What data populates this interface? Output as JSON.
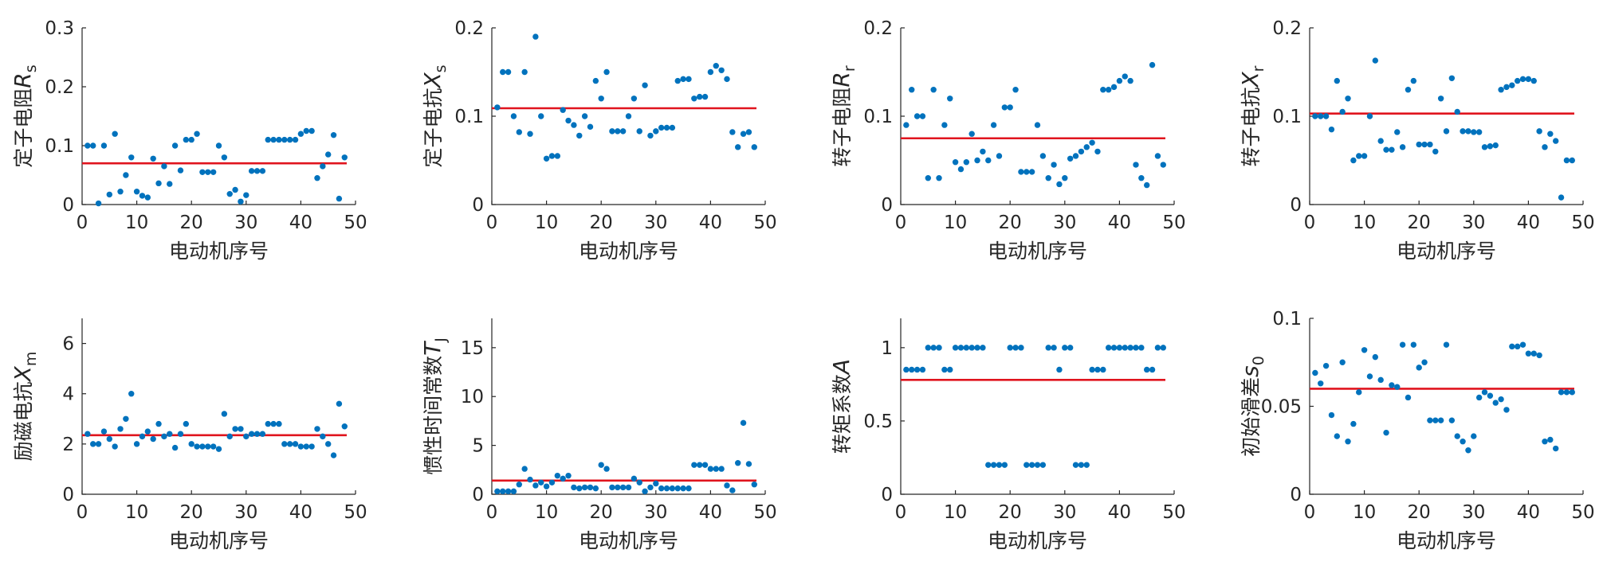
{
  "colors": {
    "points": "#0072BD",
    "mean_line": "#E0141E",
    "axes": "#262626"
  },
  "chart_data": [
    {
      "type": "scatter",
      "ylabel": "定子电阻",
      "ylabel_symbol": "R",
      "ylabel_sub": "s",
      "xlabel": "电动机序号",
      "xlim": [
        0,
        50
      ],
      "xticks": [
        0,
        10,
        20,
        30,
        40,
        50
      ],
      "ylim": [
        0,
        0.3
      ],
      "yticks": [
        "0",
        "0.1",
        "0.2",
        "0.3"
      ],
      "mean": 0.07,
      "x": [
        1,
        2,
        3,
        4,
        5,
        6,
        7,
        8,
        9,
        10,
        11,
        12,
        13,
        14,
        15,
        16,
        17,
        18,
        19,
        20,
        21,
        22,
        23,
        24,
        25,
        26,
        27,
        28,
        29,
        30,
        31,
        32,
        33,
        34,
        35,
        36,
        37,
        38,
        39,
        40,
        41,
        42,
        43,
        44,
        45,
        46,
        47,
        48
      ],
      "y": [
        0.1,
        0.1,
        0.002,
        0.1,
        0.017,
        0.12,
        0.022,
        0.05,
        0.08,
        0.022,
        0.015,
        0.012,
        0.078,
        0.036,
        0.065,
        0.035,
        0.1,
        0.058,
        0.11,
        0.11,
        0.12,
        0.055,
        0.055,
        0.055,
        0.1,
        0.08,
        0.018,
        0.025,
        0.005,
        0.016,
        0.057,
        0.057,
        0.057,
        0.11,
        0.11,
        0.11,
        0.11,
        0.11,
        0.11,
        0.12,
        0.125,
        0.125,
        0.045,
        0.065,
        0.085,
        0.118,
        0.01,
        0.08
      ]
    },
    {
      "type": "scatter",
      "ylabel": "定子电抗",
      "ylabel_symbol": "X",
      "ylabel_sub": "s",
      "xlabel": "电动机序号",
      "xlim": [
        0,
        50
      ],
      "xticks": [
        0,
        10,
        20,
        30,
        40,
        50
      ],
      "ylim": [
        0,
        0.2
      ],
      "yticks": [
        "0",
        "0.1",
        "0.2"
      ],
      "mean": 0.109,
      "x": [
        1,
        2,
        3,
        4,
        5,
        6,
        7,
        8,
        9,
        10,
        11,
        12,
        13,
        14,
        15,
        16,
        17,
        18,
        19,
        20,
        21,
        22,
        23,
        24,
        25,
        26,
        27,
        28,
        29,
        30,
        31,
        32,
        33,
        34,
        35,
        36,
        37,
        38,
        39,
        40,
        41,
        42,
        43,
        44,
        45,
        46,
        47,
        48
      ],
      "y": [
        0.11,
        0.15,
        0.15,
        0.1,
        0.082,
        0.15,
        0.08,
        0.19,
        0.1,
        0.052,
        0.055,
        0.055,
        0.107,
        0.095,
        0.09,
        0.078,
        0.1,
        0.088,
        0.14,
        0.12,
        0.15,
        0.083,
        0.083,
        0.083,
        0.1,
        0.12,
        0.083,
        0.135,
        0.078,
        0.083,
        0.087,
        0.087,
        0.087,
        0.14,
        0.142,
        0.142,
        0.12,
        0.122,
        0.122,
        0.15,
        0.157,
        0.152,
        0.142,
        0.082,
        0.065,
        0.08,
        0.082,
        0.065
      ]
    },
    {
      "type": "scatter",
      "ylabel": "转子电阻",
      "ylabel_symbol": "R",
      "ylabel_sub": "r",
      "xlabel": "电动机序号",
      "xlim": [
        0,
        50
      ],
      "xticks": [
        0,
        10,
        20,
        30,
        40,
        50
      ],
      "ylim": [
        0,
        0.2
      ],
      "yticks": [
        "0",
        "0.1",
        "0.2"
      ],
      "mean": 0.075,
      "x": [
        1,
        2,
        3,
        4,
        5,
        6,
        7,
        8,
        9,
        10,
        11,
        12,
        13,
        14,
        15,
        16,
        17,
        18,
        19,
        20,
        21,
        22,
        23,
        24,
        25,
        26,
        27,
        28,
        29,
        30,
        31,
        32,
        33,
        34,
        35,
        36,
        37,
        38,
        39,
        40,
        41,
        42,
        43,
        44,
        45,
        46,
        47,
        48
      ],
      "y": [
        0.09,
        0.13,
        0.1,
        0.1,
        0.03,
        0.13,
        0.03,
        0.09,
        0.12,
        0.048,
        0.04,
        0.048,
        0.08,
        0.05,
        0.06,
        0.05,
        0.09,
        0.055,
        0.11,
        0.11,
        0.13,
        0.037,
        0.037,
        0.037,
        0.09,
        0.055,
        0.03,
        0.045,
        0.023,
        0.03,
        0.052,
        0.055,
        0.06,
        0.065,
        0.07,
        0.06,
        0.13,
        0.13,
        0.133,
        0.14,
        0.145,
        0.14,
        0.045,
        0.03,
        0.022,
        0.158,
        0.055,
        0.045
      ]
    },
    {
      "type": "scatter",
      "ylabel": "转子电抗",
      "ylabel_symbol": "X",
      "ylabel_sub": "r",
      "xlabel": "电动机序号",
      "xlim": [
        0,
        50
      ],
      "xticks": [
        0,
        10,
        20,
        30,
        40,
        50
      ],
      "ylim": [
        0,
        0.2
      ],
      "yticks": [
        "0",
        "0.1",
        "0.2"
      ],
      "mean": 0.103,
      "x": [
        1,
        2,
        3,
        4,
        5,
        6,
        7,
        8,
        9,
        10,
        11,
        12,
        13,
        14,
        15,
        16,
        17,
        18,
        19,
        20,
        21,
        22,
        23,
        24,
        25,
        26,
        27,
        28,
        29,
        30,
        31,
        32,
        33,
        34,
        35,
        36,
        37,
        38,
        39,
        40,
        41,
        42,
        43,
        44,
        45,
        46,
        47,
        48
      ],
      "y": [
        0.1,
        0.1,
        0.1,
        0.085,
        0.14,
        0.105,
        0.12,
        0.05,
        0.055,
        0.055,
        0.1,
        0.163,
        0.072,
        0.062,
        0.062,
        0.082,
        0.065,
        0.13,
        0.14,
        0.068,
        0.068,
        0.068,
        0.06,
        0.12,
        0.083,
        0.143,
        0.105,
        0.083,
        0.083,
        0.082,
        0.082,
        0.065,
        0.066,
        0.067,
        0.13,
        0.133,
        0.135,
        0.14,
        0.142,
        0.142,
        0.14,
        0.083,
        0.065,
        0.08,
        0.072,
        0.008,
        0.05,
        0.05
      ]
    },
    {
      "type": "scatter",
      "ylabel": "励磁电抗",
      "ylabel_symbol": "X",
      "ylabel_sub": "m",
      "xlabel": "电动机序号",
      "xlim": [
        0,
        50
      ],
      "xticks": [
        0,
        10,
        20,
        30,
        40,
        50
      ],
      "ylim": [
        0,
        7
      ],
      "yticks": [
        "0",
        "2",
        "4",
        "6"
      ],
      "mean": 2.35,
      "x": [
        1,
        2,
        3,
        4,
        5,
        6,
        7,
        8,
        9,
        10,
        11,
        12,
        13,
        14,
        15,
        16,
        17,
        18,
        19,
        20,
        21,
        22,
        23,
        24,
        25,
        26,
        27,
        28,
        29,
        30,
        31,
        32,
        33,
        34,
        35,
        36,
        37,
        38,
        39,
        40,
        41,
        42,
        43,
        44,
        45,
        46,
        47,
        48
      ],
      "y": [
        2.4,
        2.0,
        2.0,
        2.5,
        2.2,
        1.9,
        2.6,
        3.0,
        4.0,
        2.0,
        2.3,
        2.5,
        2.2,
        2.8,
        2.3,
        2.4,
        1.85,
        2.4,
        2.8,
        2.0,
        1.9,
        1.9,
        1.9,
        1.9,
        1.8,
        3.2,
        2.3,
        2.6,
        2.6,
        2.3,
        2.4,
        2.4,
        2.4,
        2.8,
        2.8,
        2.8,
        2.0,
        2.0,
        2.0,
        1.9,
        1.9,
        1.9,
        2.6,
        2.3,
        2.0,
        1.55,
        3.6,
        2.7
      ]
    },
    {
      "type": "scatter",
      "ylabel": "惯性时间常数",
      "ylabel_symbol": "T",
      "ylabel_sub": "J",
      "xlabel": "电动机序号",
      "xlim": [
        0,
        50
      ],
      "xticks": [
        0,
        10,
        20,
        30,
        40,
        50
      ],
      "ylim": [
        0,
        18
      ],
      "yticks": [
        "0",
        "5",
        "10",
        "15"
      ],
      "mean": 1.4,
      "x": [
        1,
        2,
        3,
        4,
        5,
        6,
        7,
        8,
        9,
        10,
        11,
        12,
        13,
        14,
        15,
        16,
        17,
        18,
        19,
        20,
        21,
        22,
        23,
        24,
        25,
        26,
        27,
        28,
        29,
        30,
        31,
        32,
        33,
        34,
        35,
        36,
        37,
        38,
        39,
        40,
        41,
        42,
        43,
        44,
        45,
        46,
        47,
        48
      ],
      "y": [
        0.3,
        0.3,
        0.3,
        0.3,
        1.0,
        2.6,
        1.5,
        0.9,
        1.2,
        0.8,
        1.2,
        1.9,
        1.6,
        1.9,
        0.7,
        0.6,
        0.7,
        0.7,
        0.6,
        3.0,
        2.6,
        0.7,
        0.7,
        0.7,
        0.7,
        1.6,
        1.2,
        0.3,
        0.7,
        1.1,
        0.6,
        0.6,
        0.6,
        0.6,
        0.6,
        0.6,
        3.0,
        3.0,
        3.0,
        2.6,
        2.6,
        2.6,
        0.9,
        0.4,
        3.2,
        7.3,
        3.1,
        1.0
      ]
    },
    {
      "type": "scatter",
      "ylabel": "转矩系数",
      "ylabel_symbol": "A",
      "ylabel_sub": "",
      "xlabel": "电动机序号",
      "xlim": [
        0,
        50
      ],
      "xticks": [
        0,
        10,
        20,
        30,
        40,
        50
      ],
      "ylim": [
        0,
        1.2
      ],
      "yticks": [
        "0",
        "0.5",
        "1"
      ],
      "mean": 0.78,
      "x": [
        1,
        2,
        3,
        4,
        5,
        6,
        7,
        8,
        9,
        10,
        11,
        12,
        13,
        14,
        15,
        16,
        17,
        18,
        19,
        20,
        21,
        22,
        23,
        24,
        25,
        26,
        27,
        28,
        29,
        30,
        31,
        32,
        33,
        34,
        35,
        36,
        37,
        38,
        39,
        40,
        41,
        42,
        43,
        44,
        45,
        46,
        47,
        48
      ],
      "y": [
        0.85,
        0.85,
        0.85,
        0.85,
        1.0,
        1.0,
        1.0,
        0.85,
        0.85,
        1.0,
        1.0,
        1.0,
        1.0,
        1.0,
        1.0,
        0.2,
        0.2,
        0.2,
        0.2,
        1.0,
        1.0,
        1.0,
        0.2,
        0.2,
        0.2,
        0.2,
        1.0,
        1.0,
        0.85,
        1.0,
        1.0,
        0.2,
        0.2,
        0.2,
        0.85,
        0.85,
        0.85,
        1.0,
        1.0,
        1.0,
        1.0,
        1.0,
        1.0,
        1.0,
        0.85,
        0.85,
        1.0,
        1.0
      ]
    },
    {
      "type": "scatter",
      "ylabel": "初始滑差",
      "ylabel_symbol": "s",
      "ylabel_sub": "0",
      "xlabel": "电动机序号",
      "xlim": [
        0,
        50
      ],
      "xticks": [
        0,
        10,
        20,
        30,
        40,
        50
      ],
      "ylim": [
        0,
        0.1
      ],
      "yticks": [
        "0",
        "0.05",
        "0.1"
      ],
      "mean": 0.06,
      "x": [
        1,
        2,
        3,
        4,
        5,
        6,
        7,
        8,
        9,
        10,
        11,
        12,
        13,
        14,
        15,
        16,
        17,
        18,
        19,
        20,
        21,
        22,
        23,
        24,
        25,
        26,
        27,
        28,
        29,
        30,
        31,
        32,
        33,
        34,
        35,
        36,
        37,
        38,
        39,
        40,
        41,
        42,
        43,
        44,
        45,
        46,
        47,
        48
      ],
      "y": [
        0.069,
        0.063,
        0.073,
        0.045,
        0.033,
        0.075,
        0.03,
        0.04,
        0.058,
        0.082,
        0.067,
        0.078,
        0.065,
        0.035,
        0.062,
        0.061,
        0.085,
        0.055,
        0.085,
        0.072,
        0.075,
        0.042,
        0.042,
        0.042,
        0.085,
        0.042,
        0.033,
        0.03,
        0.025,
        0.033,
        0.055,
        0.058,
        0.056,
        0.052,
        0.054,
        0.048,
        0.084,
        0.084,
        0.085,
        0.08,
        0.08,
        0.079,
        0.03,
        0.031,
        0.026,
        0.058,
        0.058,
        0.058
      ]
    }
  ]
}
